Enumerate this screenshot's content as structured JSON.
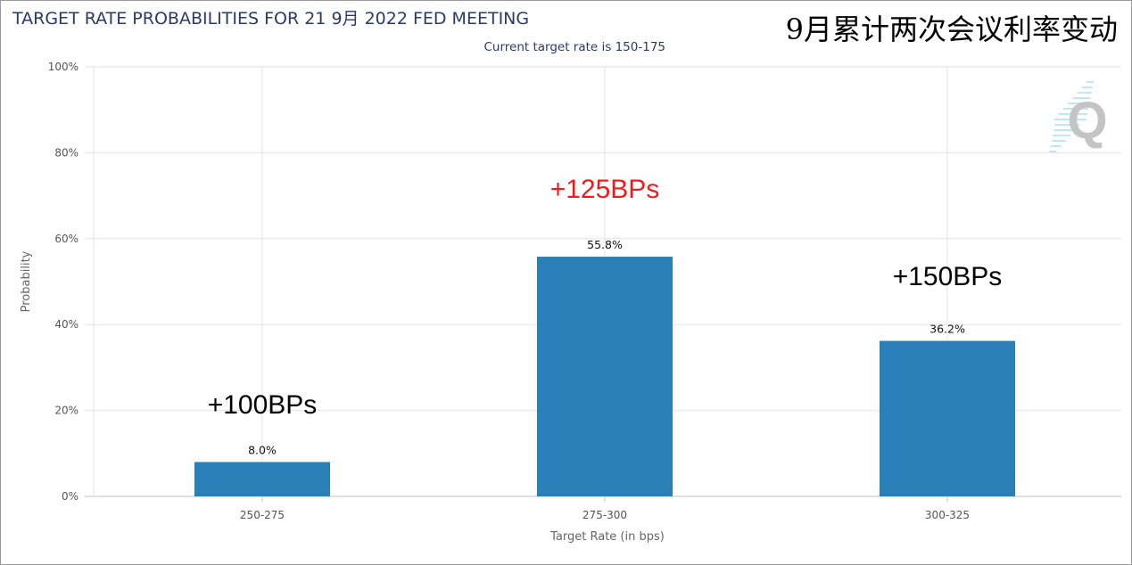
{
  "chart_data": {
    "type": "bar",
    "title": "TARGET RATE PROBABILITIES FOR 21 9月 2022 FED MEETING",
    "subtitle": "Current target rate is 150-175",
    "overlay_title": "9月累计两次会议利率变动",
    "xlabel": "Target Rate (in bps)",
    "ylabel": "Probability",
    "categories": [
      "250-275",
      "275-300",
      "300-325"
    ],
    "values": [
      8.0,
      55.8,
      36.2
    ],
    "data_labels": [
      "8.0%",
      "55.8%",
      "36.2%"
    ],
    "ylim": [
      0,
      100
    ],
    "yticks": [
      "0%",
      "20%",
      "40%",
      "60%",
      "80%",
      "100%"
    ],
    "grid": true,
    "bar_color": "#2a7fb8",
    "annotations": [
      {
        "text": "+100BPs",
        "category": "250-275",
        "color": "#000000"
      },
      {
        "text": "+125BPs",
        "category": "275-300",
        "color": "#ee1c1c"
      },
      {
        "text": "+150BPs",
        "category": "300-325",
        "color": "#000000"
      }
    ],
    "watermark": "Q"
  }
}
